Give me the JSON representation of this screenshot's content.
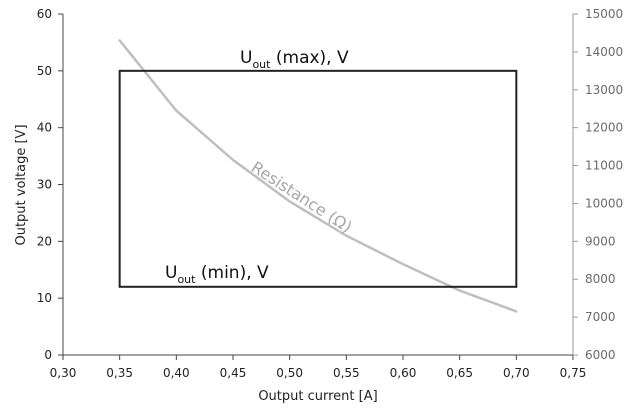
{
  "chart_data": {
    "type": "line",
    "xlabel": "Output current [A]",
    "ylabel": "Output voltage [V]",
    "xlim": [
      0.3,
      0.75
    ],
    "ylim": [
      0,
      60
    ],
    "y2lim": [
      6000,
      15000
    ],
    "x_ticks": [
      "0,30",
      "0,35",
      "0,40",
      "0,45",
      "0,50",
      "0,55",
      "0,60",
      "0,65",
      "0,70",
      "0,75"
    ],
    "y_ticks": [
      "0",
      "10",
      "20",
      "30",
      "40",
      "50",
      "60"
    ],
    "y2_ticks": [
      "6000",
      "7000",
      "8000",
      "9000",
      "10000",
      "11000",
      "12000",
      "13000",
      "14000",
      "15000"
    ],
    "operating_area": {
      "x_min": 0.35,
      "x_max": 0.7,
      "y_min": 12,
      "y_max": 50,
      "color": "#222222"
    },
    "series": [
      {
        "name": "Resistance (Ω)",
        "axis": "right",
        "color": "#bfbfbf",
        "x": [
          0.35,
          0.4,
          0.45,
          0.5,
          0.55,
          0.6,
          0.65,
          0.7
        ],
        "y": [
          14300,
          12450,
          11150,
          10050,
          9150,
          8400,
          7700,
          7150
        ]
      }
    ],
    "annotations": [
      {
        "main": "U",
        "sub": "out",
        "rest": " (max), V"
      },
      {
        "main": "U",
        "sub": "out",
        "rest": " (min), V"
      }
    ]
  }
}
